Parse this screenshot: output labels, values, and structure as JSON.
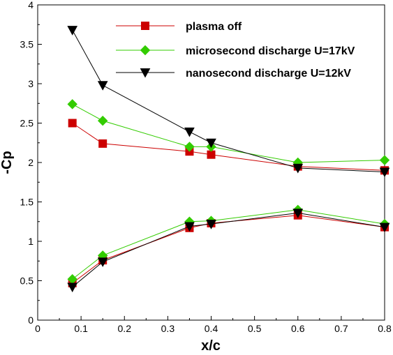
{
  "chart_data": {
    "type": "line",
    "xlabel": "x/c",
    "ylabel": "-Cp",
    "xlim": [
      0,
      0.8
    ],
    "ylim": [
      0,
      4
    ],
    "xticks": [
      "0",
      "0.1",
      "0.2",
      "0.3",
      "0.4",
      "0.5",
      "0.6",
      "0.7",
      "0.8"
    ],
    "yticks": [
      "0",
      "0.5",
      "1",
      "1.5",
      "2",
      "2.5",
      "3",
      "3.5",
      "4"
    ],
    "grid": false,
    "legend_position": "top-right",
    "series": [
      {
        "name": "plasma off",
        "color": "#cc0000",
        "marker": "square",
        "upper": {
          "x": [
            0.08,
            0.15,
            0.35,
            0.4,
            0.6,
            0.8
          ],
          "y": [
            2.5,
            2.24,
            2.14,
            2.1,
            1.95,
            1.9
          ]
        },
        "lower": {
          "x": [
            0.08,
            0.15,
            0.35,
            0.4,
            0.6,
            0.8
          ],
          "y": [
            0.47,
            0.76,
            1.17,
            1.23,
            1.33,
            1.18
          ]
        }
      },
      {
        "name": "microsecond discharge U=17kV",
        "color": "#33cc00",
        "marker": "diamond",
        "upper": {
          "x": [
            0.08,
            0.15,
            0.35,
            0.4,
            0.6,
            0.8
          ],
          "y": [
            2.74,
            2.53,
            2.2,
            2.2,
            2.0,
            2.03
          ]
        },
        "lower": {
          "x": [
            0.08,
            0.15,
            0.35,
            0.4,
            0.6,
            0.8
          ],
          "y": [
            0.52,
            0.82,
            1.25,
            1.26,
            1.4,
            1.22
          ]
        }
      },
      {
        "name": "nanosecond discharge U=12kV",
        "color": "#000000",
        "marker": "triangle-down",
        "upper": {
          "x": [
            0.08,
            0.15,
            0.35,
            0.4,
            0.6,
            0.8
          ],
          "y": [
            3.68,
            2.98,
            2.39,
            2.25,
            1.93,
            1.88
          ]
        },
        "lower": {
          "x": [
            0.08,
            0.15,
            0.35,
            0.4,
            0.6,
            0.8
          ],
          "y": [
            0.42,
            0.74,
            1.19,
            1.22,
            1.36,
            1.18
          ]
        }
      }
    ]
  }
}
